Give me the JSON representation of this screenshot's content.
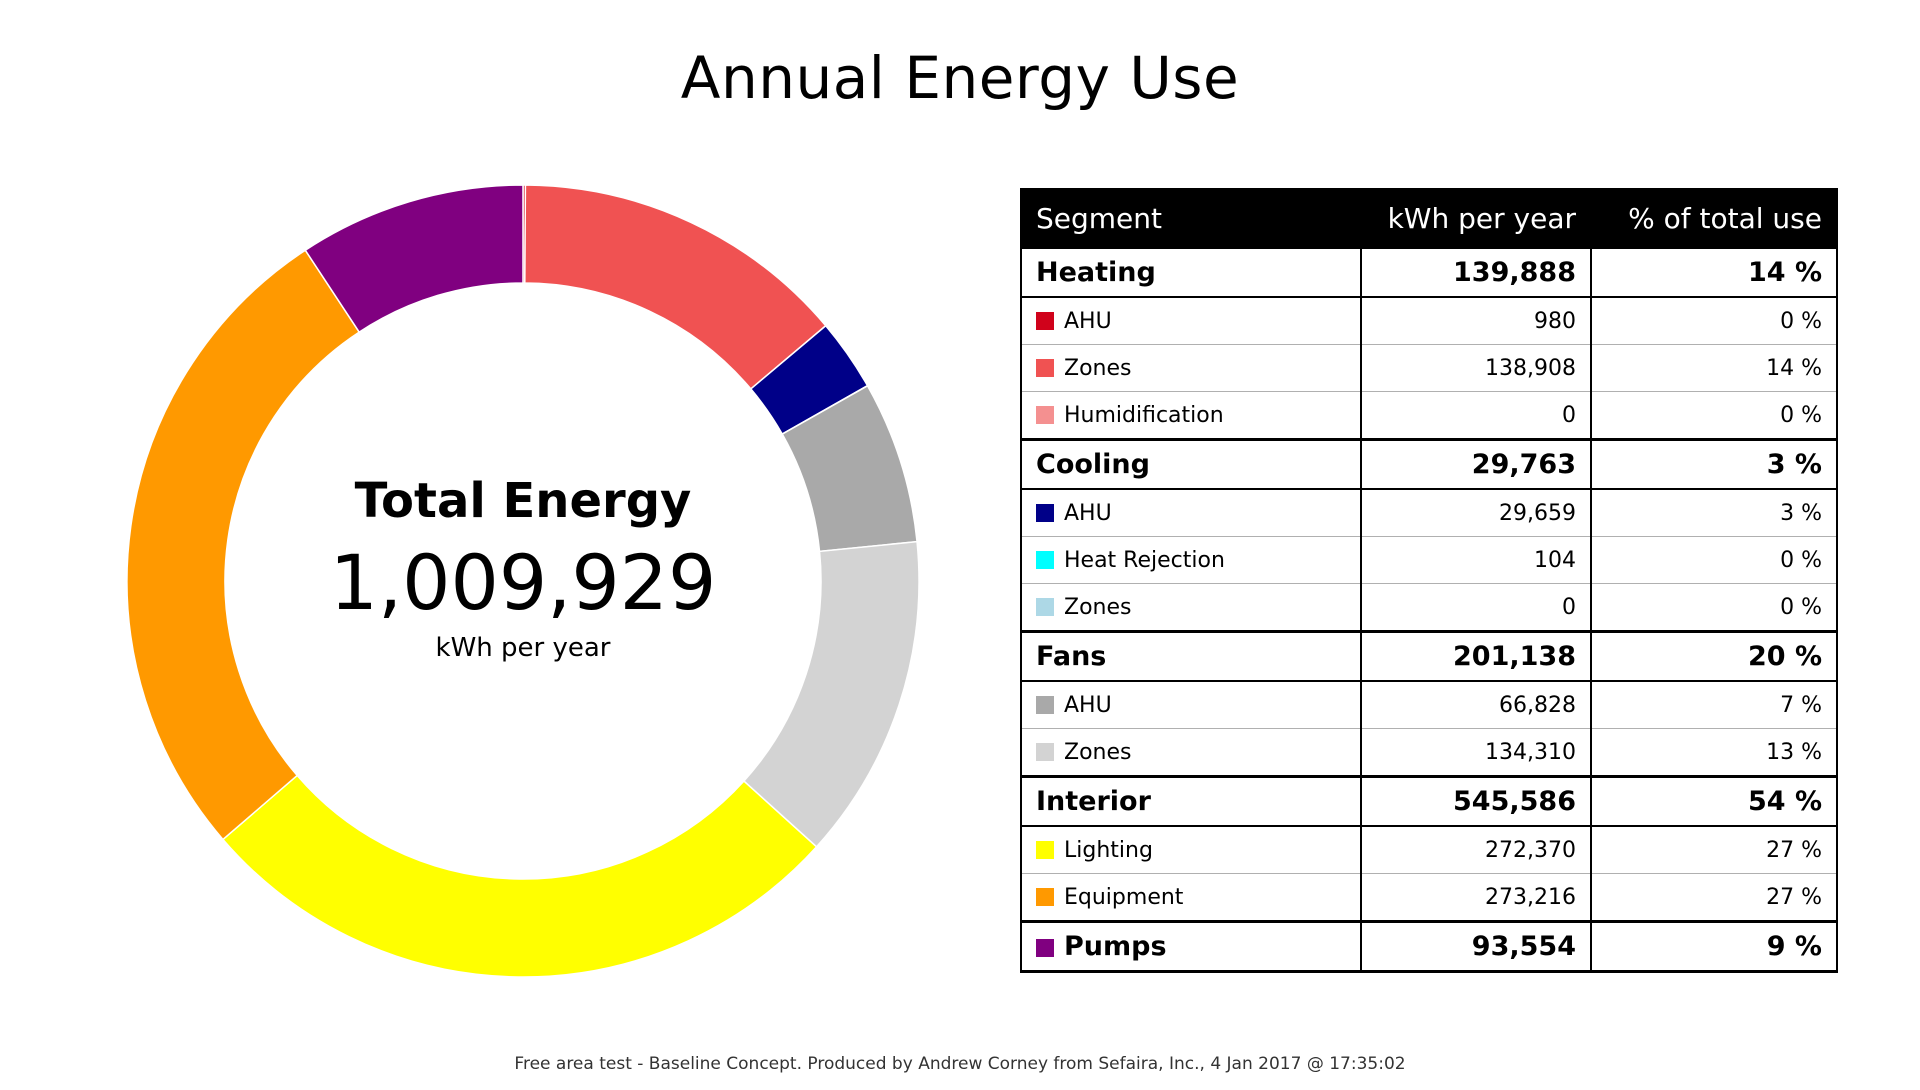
{
  "title": "Annual Energy Use",
  "center": {
    "label": "Total Energy",
    "value": "1,009,929",
    "unit": "kWh per year"
  },
  "table": {
    "headers": [
      "Segment",
      "kWh per year",
      "% of total use"
    ]
  },
  "footer": "Free area test - Baseline Concept. Produced by Andrew Corney from Sefaira, Inc., 4 Jan 2017 @ 17:35:02",
  "chart_data": {
    "type": "pie",
    "title": "Annual Energy Use",
    "total": 1009929,
    "unit": "kWh per year",
    "slices": [
      {
        "group": "Heating",
        "name": "AHU",
        "value": 980,
        "percent": "0 %",
        "color": "#d0021b"
      },
      {
        "group": "Heating",
        "name": "Zones",
        "value": 138908,
        "percent": "14 %",
        "color": "#f05252"
      },
      {
        "group": "Heating",
        "name": "Humidification",
        "value": 0,
        "percent": "0 %",
        "color": "#f49090"
      },
      {
        "group": "Cooling",
        "name": "AHU",
        "value": 29659,
        "percent": "3 %",
        "color": "#000088"
      },
      {
        "group": "Cooling",
        "name": "Heat Rejection",
        "value": 104,
        "percent": "0 %",
        "color": "#00ffff"
      },
      {
        "group": "Cooling",
        "name": "Zones",
        "value": 0,
        "percent": "0 %",
        "color": "#add8e6"
      },
      {
        "group": "Fans",
        "name": "AHU",
        "value": 66828,
        "percent": "7 %",
        "color": "#a9a9a9"
      },
      {
        "group": "Fans",
        "name": "Zones",
        "value": 134310,
        "percent": "13 %",
        "color": "#d3d3d3"
      },
      {
        "group": "Interior",
        "name": "Lighting",
        "value": 272370,
        "percent": "27 %",
        "color": "#ffff00"
      },
      {
        "group": "Interior",
        "name": "Equipment",
        "value": 273216,
        "percent": "27 %",
        "color": "#ff9900"
      },
      {
        "group": "Pumps",
        "name": "Pumps",
        "value": 93554,
        "percent": "9 %",
        "color": "#800080"
      }
    ],
    "groups": [
      {
        "name": "Heating",
        "value": 139888,
        "value_label": "139,888",
        "percent": "14 %",
        "items": [
          {
            "name": "AHU",
            "value_label": "980",
            "percent": "0 %",
            "color": "#d0021b"
          },
          {
            "name": "Zones",
            "value_label": "138,908",
            "percent": "14 %",
            "color": "#f05252"
          },
          {
            "name": "Humidification",
            "value_label": "0",
            "percent": "0 %",
            "color": "#f49090"
          }
        ]
      },
      {
        "name": "Cooling",
        "value": 29763,
        "value_label": "29,763",
        "percent": "3 %",
        "items": [
          {
            "name": "AHU",
            "value_label": "29,659",
            "percent": "3 %",
            "color": "#000088"
          },
          {
            "name": "Heat Rejection",
            "value_label": "104",
            "percent": "0 %",
            "color": "#00ffff"
          },
          {
            "name": "Zones",
            "value_label": "0",
            "percent": "0 %",
            "color": "#add8e6"
          }
        ]
      },
      {
        "name": "Fans",
        "value": 201138,
        "value_label": "201,138",
        "percent": "20 %",
        "items": [
          {
            "name": "AHU",
            "value_label": "66,828",
            "percent": "7 %",
            "color": "#a9a9a9"
          },
          {
            "name": "Zones",
            "value_label": "134,310",
            "percent": "13 %",
            "color": "#d3d3d3"
          }
        ]
      },
      {
        "name": "Interior",
        "value": 545586,
        "value_label": "545,586",
        "percent": "54 %",
        "items": [
          {
            "name": "Lighting",
            "value_label": "272,370",
            "percent": "27 %",
            "color": "#ffff00"
          },
          {
            "name": "Equipment",
            "value_label": "273,216",
            "percent": "27 %",
            "color": "#ff9900"
          }
        ]
      },
      {
        "name": "Pumps",
        "value": 93554,
        "value_label": "93,554",
        "percent": "9 %",
        "color": "#800080",
        "items": []
      }
    ]
  }
}
